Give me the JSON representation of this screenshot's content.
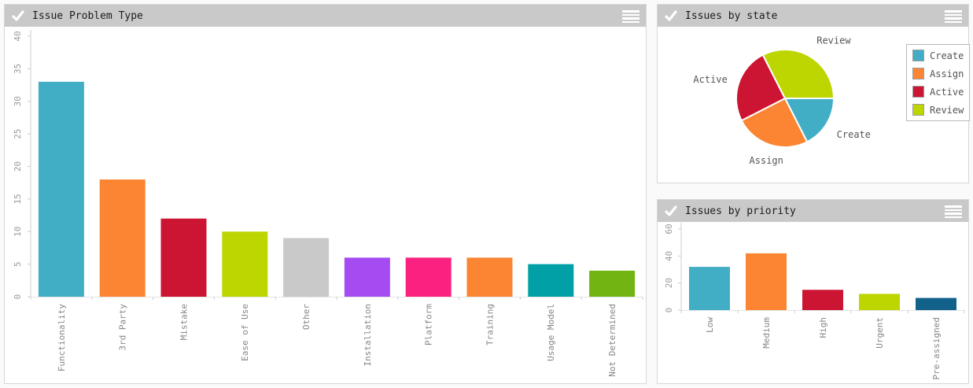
{
  "icons": {
    "header_left": "check-icon",
    "header_right": "menu-icon"
  },
  "theme": {
    "header_bg": "#c9c9c9",
    "panel_border": "#d7d7d7",
    "axis_color": "#cccccc",
    "axis_text": "#9a9a9a"
  },
  "chart_data": [
    {
      "id": "problem_type",
      "type": "bar",
      "title": "Issue Problem Type",
      "categories": [
        "Functionality",
        "3rd Party",
        "Mistake",
        "Ease of Use",
        "Other",
        "Installation",
        "Platform",
        "Training",
        "Usage Model",
        "Not Determined"
      ],
      "values": [
        33,
        18,
        12,
        10,
        9,
        6,
        6,
        6,
        5,
        4
      ],
      "bar_colors": [
        "#41aec5",
        "#fb8532",
        "#cc1433",
        "#bdd500",
        "#c9c9c9",
        "#a44cf2",
        "#fb2180",
        "#fb8532",
        "#00a0a6",
        "#72b513"
      ],
      "xlabel": "",
      "ylabel": "",
      "ylim": [
        0,
        40
      ],
      "yticks": [
        0,
        5,
        10,
        15,
        20,
        25,
        30,
        35,
        40
      ],
      "grid": false,
      "tick_label_rotation": -90
    },
    {
      "id": "by_state",
      "type": "pie",
      "title": "Issues by state",
      "labels": [
        "Create",
        "Assign",
        "Active",
        "Review"
      ],
      "values": [
        17.5,
        25,
        25,
        32.5
      ],
      "colors": [
        "#41aec5",
        "#fb8532",
        "#cc1433",
        "#bdd500"
      ],
      "legend": [
        "Create",
        "Assign",
        "Active",
        "Review"
      ],
      "legend_position": "right"
    },
    {
      "id": "by_priority",
      "type": "bar",
      "title": "Issues by priority",
      "categories": [
        "Low",
        "Medium",
        "High",
        "Urgent",
        "Pre-assigned"
      ],
      "values": [
        32,
        42,
        15,
        12,
        9
      ],
      "bar_colors": [
        "#41aec5",
        "#fb8532",
        "#cc1433",
        "#bdd500",
        "#11618a"
      ],
      "xlabel": "",
      "ylabel": "",
      "ylim": [
        0,
        60
      ],
      "yticks": [
        0,
        20,
        40,
        60
      ],
      "grid": false,
      "tick_label_rotation": -90
    }
  ]
}
